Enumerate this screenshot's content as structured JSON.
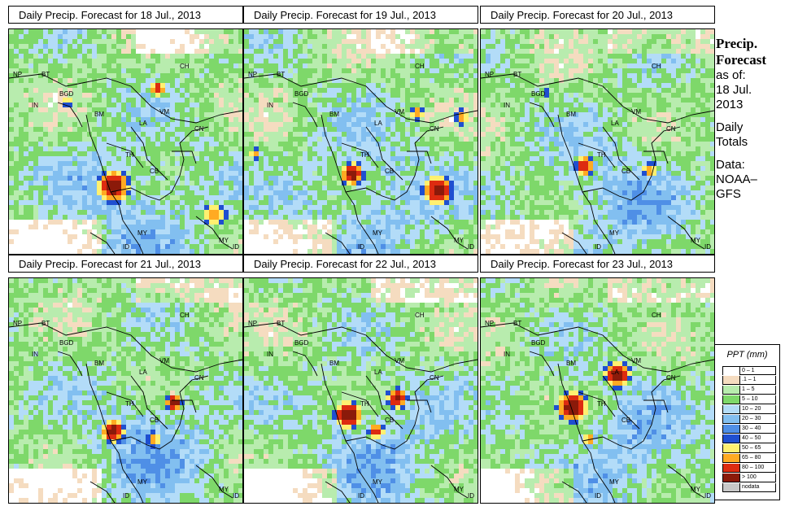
{
  "panels": [
    {
      "title": "Daily Precip. Forecast for  18 Jul., 2013"
    },
    {
      "title": "Daily Precip. Forecast for  19 Jul., 2013"
    },
    {
      "title": "Daily Precip. Forecast for  20 Jul., 2013"
    },
    {
      "title": "Daily Precip. Forecast for  21 Jul., 2013"
    },
    {
      "title": "Daily Precip. Forecast for  22 Jul., 2013"
    },
    {
      "title": "Daily Precip. Forecast for  23 Jul., 2013"
    }
  ],
  "country_labels": [
    "NP",
    "BT",
    "IN",
    "BGD",
    "BM",
    "LA",
    "VM",
    "CH",
    "CN",
    "TH",
    "CB",
    "MY",
    "ID",
    "MY",
    "ID"
  ],
  "sidebar": {
    "heading1": "Precip.",
    "heading2": "Forecast",
    "asof": "as of:",
    "date1": "18 Jul.",
    "date2": "2013",
    "daily1": "Daily",
    "daily2": "Totals",
    "data1": "Data:",
    "data2": "NOAA–",
    "data3": "GFS"
  },
  "legend": {
    "title": "PPT (mm)",
    "items": [
      {
        "label": "0 – 1",
        "color": "#ffffff"
      },
      {
        "label": ".1 – 1",
        "color": "#f5dcc0"
      },
      {
        "label": "1 – 5",
        "color": "#b8ecae"
      },
      {
        "label": "5 – 10",
        "color": "#7ed86a"
      },
      {
        "label": "10 – 20",
        "color": "#b3dcf8"
      },
      {
        "label": "20 – 30",
        "color": "#82bff0"
      },
      {
        "label": "30 – 40",
        "color": "#4f8fe6"
      },
      {
        "label": "40 – 50",
        "color": "#1f4fd0"
      },
      {
        "label": "50 – 65",
        "color": "#fff070"
      },
      {
        "label": "65 – 80",
        "color": "#ffaa22"
      },
      {
        "label": "80 – 100",
        "color": "#dd2b10"
      },
      {
        "label": "> 100",
        "color": "#8b1a0a"
      },
      {
        "label": "nodata",
        "color": "#c8c8c8"
      }
    ]
  }
}
